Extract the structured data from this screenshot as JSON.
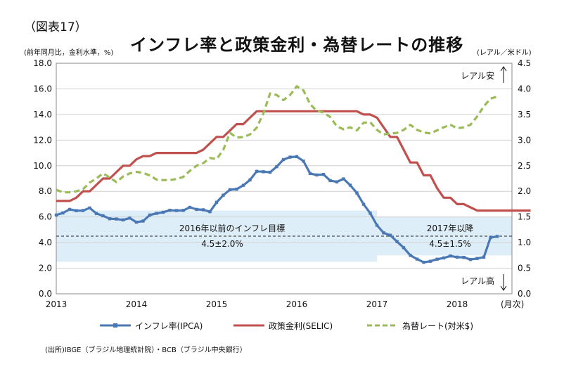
{
  "figure_label": "（図表17）",
  "title": "インフレ率と政策金利・為替レートの推移",
  "left_unit": "(前年同月比，金利水準，%)",
  "right_unit": "(レアル／米ドル)",
  "source": "(出所)IBGE（ブラジル地理統計院）・BCB（ブラジル中央銀行）",
  "colors": {
    "ipca": "#4a78b5",
    "selic": "#c0504d",
    "fx": "#9bbb59",
    "band": "#deeef8"
  },
  "chart_data": {
    "type": "line",
    "x_labels": [
      "2013",
      "2014",
      "2015",
      "2016",
      "2017",
      "2018"
    ],
    "x_unit_label": "(月次)",
    "ylim_left": [
      0,
      18
    ],
    "yticks_left": [
      "0.0",
      "2.0",
      "4.0",
      "6.0",
      "8.0",
      "10.0",
      "12.0",
      "14.0",
      "16.0",
      "18.0"
    ],
    "ylim_right": [
      0,
      4.5
    ],
    "yticks_right": [
      "0.0",
      "0.5",
      "1.0",
      "1.5",
      "2.0",
      "2.5",
      "3.0",
      "3.5",
      "4.0",
      "4.5"
    ],
    "grid": true,
    "legend_position": "bottom",
    "series": [
      {
        "name": "インフレ率(IPCA)",
        "axis": "left",
        "style": "solid-marker",
        "values": [
          6.15,
          6.31,
          6.59,
          6.49,
          6.5,
          6.7,
          6.27,
          6.09,
          5.86,
          5.84,
          5.77,
          5.91,
          5.59,
          5.68,
          6.15,
          6.28,
          6.37,
          6.52,
          6.5,
          6.51,
          6.75,
          6.59,
          6.56,
          6.41,
          7.14,
          7.7,
          8.13,
          8.17,
          8.47,
          8.89,
          9.56,
          9.53,
          9.49,
          9.93,
          10.48,
          10.67,
          10.71,
          10.36,
          9.39,
          9.28,
          9.32,
          8.84,
          8.74,
          8.97,
          8.48,
          7.87,
          6.99,
          6.29,
          5.35,
          4.76,
          4.57,
          4.08,
          3.6,
          3.0,
          2.71,
          2.46,
          2.54,
          2.7,
          2.8,
          2.95,
          2.86,
          2.84,
          2.68,
          2.76,
          2.86,
          4.39,
          4.48
        ]
      },
      {
        "name": "政策金利(SELIC)",
        "axis": "left",
        "style": "solid",
        "values": [
          7.25,
          7.25,
          7.25,
          7.5,
          8.0,
          8.0,
          8.5,
          9.0,
          9.0,
          9.5,
          10.0,
          10.0,
          10.5,
          10.75,
          10.75,
          11.0,
          11.0,
          11.0,
          11.0,
          11.0,
          11.0,
          11.0,
          11.25,
          11.75,
          12.25,
          12.25,
          12.75,
          13.25,
          13.25,
          13.75,
          14.25,
          14.25,
          14.25,
          14.25,
          14.25,
          14.25,
          14.25,
          14.25,
          14.25,
          14.25,
          14.25,
          14.25,
          14.25,
          14.25,
          14.25,
          14.25,
          14.0,
          14.0,
          13.75,
          13.0,
          12.25,
          12.25,
          11.25,
          10.25,
          10.25,
          9.25,
          9.25,
          8.25,
          7.5,
          7.5,
          7.0,
          7.0,
          6.75,
          6.5,
          6.5,
          6.5,
          6.5,
          6.5,
          6.5,
          6.5,
          6.5,
          6.5
        ]
      },
      {
        "name": "為替レート(対米$)",
        "axis": "right",
        "style": "dashed",
        "values": [
          2.03,
          1.98,
          1.98,
          2.0,
          2.04,
          2.17,
          2.25,
          2.35,
          2.27,
          2.18,
          2.29,
          2.35,
          2.38,
          2.36,
          2.31,
          2.23,
          2.22,
          2.22,
          2.24,
          2.28,
          2.4,
          2.5,
          2.55,
          2.65,
          2.63,
          2.81,
          3.14,
          3.05,
          3.06,
          3.11,
          3.24,
          3.52,
          3.91,
          3.88,
          3.78,
          3.88,
          4.05,
          3.97,
          3.7,
          3.57,
          3.54,
          3.45,
          3.27,
          3.21,
          3.25,
          3.19,
          3.34,
          3.35,
          3.2,
          3.11,
          3.13,
          3.14,
          3.2,
          3.3,
          3.2,
          3.15,
          3.13,
          3.19,
          3.25,
          3.3,
          3.23,
          3.25,
          3.3,
          3.46,
          3.66,
          3.81,
          3.85
        ]
      }
    ],
    "annotations": {
      "target_2016_text": "2016年以前のインフレ目標",
      "target_2016_range": "4.5±2.0%",
      "target_2016_band": [
        2.5,
        6.5
      ],
      "target_2017_text": "2017年以降",
      "target_2017_range": "4.5±1.5%",
      "target_2017_band": [
        3.0,
        6.0
      ],
      "target_center": 4.5,
      "real_weak": "レアル安",
      "real_strong": "レアル高"
    }
  }
}
